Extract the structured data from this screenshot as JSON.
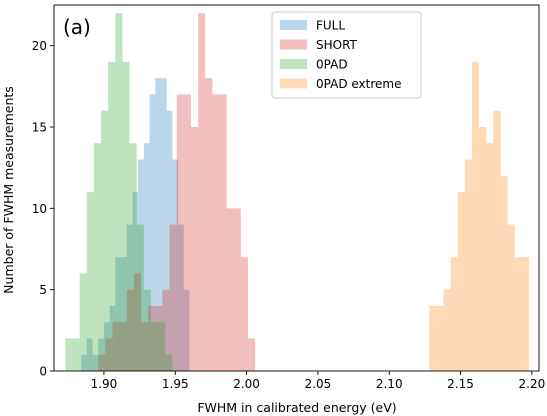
{
  "chart_data": {
    "type": "histogram",
    "panel_label": "(a)",
    "xlabel": "FWHM in calibrated energy (eV)",
    "ylabel": "Number of FWHM measurements",
    "xlim": [
      1.865,
      2.205
    ],
    "ylim": [
      0,
      22.5
    ],
    "x_ticks": [
      1.9,
      1.95,
      2.0,
      2.05,
      2.1,
      2.15,
      2.2
    ],
    "x_tick_labels": [
      "1.90",
      "1.95",
      "2.00",
      "2.05",
      "2.10",
      "2.15",
      "2.20"
    ],
    "y_ticks": [
      0,
      5,
      10,
      15,
      20
    ],
    "y_tick_labels": [
      "0",
      "5",
      "10",
      "15",
      "20"
    ],
    "legend_position": "top-right",
    "series": [
      {
        "name": "FULL",
        "color": "#1f77b4",
        "alpha": 0.3,
        "bins": [
          [
            1.884,
            1.888,
            1
          ],
          [
            1.888,
            1.892,
            2
          ],
          [
            1.892,
            1.896,
            1
          ],
          [
            1.896,
            1.9,
            2
          ],
          [
            1.9,
            1.904,
            3
          ],
          [
            1.904,
            1.908,
            4
          ],
          [
            1.908,
            1.912,
            7
          ],
          [
            1.912,
            1.916,
            7
          ],
          [
            1.916,
            1.92,
            9
          ],
          [
            1.92,
            1.924,
            11
          ],
          [
            1.924,
            1.928,
            13
          ],
          [
            1.928,
            1.932,
            14
          ],
          [
            1.932,
            1.936,
            17
          ],
          [
            1.936,
            1.94,
            18
          ],
          [
            1.94,
            1.944,
            18
          ],
          [
            1.944,
            1.948,
            16
          ],
          [
            1.948,
            1.952,
            13
          ],
          [
            1.952,
            1.956,
            9
          ],
          [
            1.956,
            1.96,
            5
          ]
        ]
      },
      {
        "name": "SHORT",
        "color": "#d62728",
        "alpha": 0.3,
        "bins": [
          [
            1.896,
            1.901,
            1
          ],
          [
            1.901,
            1.906,
            2
          ],
          [
            1.906,
            1.911,
            3
          ],
          [
            1.911,
            1.916,
            3
          ],
          [
            1.916,
            1.921,
            5
          ],
          [
            1.921,
            1.926,
            6
          ],
          [
            1.926,
            1.931,
            3
          ],
          [
            1.931,
            1.936,
            4
          ],
          [
            1.936,
            1.941,
            4
          ],
          [
            1.941,
            1.946,
            5
          ],
          [
            1.946,
            1.951,
            9
          ],
          [
            1.951,
            1.956,
            17
          ],
          [
            1.956,
            1.961,
            17
          ],
          [
            1.961,
            1.966,
            15
          ],
          [
            1.966,
            1.971,
            22
          ],
          [
            1.971,
            1.976,
            18
          ],
          [
            1.976,
            1.981,
            17
          ],
          [
            1.981,
            1.986,
            17
          ],
          [
            1.986,
            1.991,
            10
          ],
          [
            1.991,
            1.996,
            10
          ],
          [
            1.996,
            2.001,
            7
          ],
          [
            2.001,
            2.006,
            2
          ]
        ]
      },
      {
        "name": "0PAD",
        "color": "#2ca02c",
        "alpha": 0.3,
        "bins": [
          [
            1.873,
            1.878,
            2
          ],
          [
            1.878,
            1.883,
            2
          ],
          [
            1.883,
            1.888,
            6
          ],
          [
            1.888,
            1.893,
            11
          ],
          [
            1.893,
            1.898,
            14
          ],
          [
            1.898,
            1.903,
            16
          ],
          [
            1.903,
            1.908,
            19
          ],
          [
            1.908,
            1.913,
            22
          ],
          [
            1.913,
            1.918,
            19
          ],
          [
            1.918,
            1.923,
            14
          ],
          [
            1.923,
            1.928,
            9
          ],
          [
            1.928,
            1.933,
            5
          ],
          [
            1.933,
            1.938,
            3
          ],
          [
            1.938,
            1.943,
            3
          ],
          [
            1.943,
            1.948,
            1
          ]
        ]
      },
      {
        "name": "0PAD extreme",
        "color": "#ff7f0e",
        "alpha": 0.3,
        "bins": [
          [
            2.128,
            2.133,
            4
          ],
          [
            2.133,
            2.138,
            4
          ],
          [
            2.138,
            2.143,
            5
          ],
          [
            2.143,
            2.148,
            7
          ],
          [
            2.148,
            2.153,
            11
          ],
          [
            2.153,
            2.158,
            13
          ],
          [
            2.158,
            2.163,
            19
          ],
          [
            2.163,
            2.168,
            15
          ],
          [
            2.168,
            2.173,
            14
          ],
          [
            2.173,
            2.178,
            16
          ],
          [
            2.178,
            2.183,
            12
          ],
          [
            2.183,
            2.188,
            9
          ],
          [
            2.188,
            2.193,
            7
          ],
          [
            2.193,
            2.198,
            7
          ]
        ]
      }
    ]
  }
}
